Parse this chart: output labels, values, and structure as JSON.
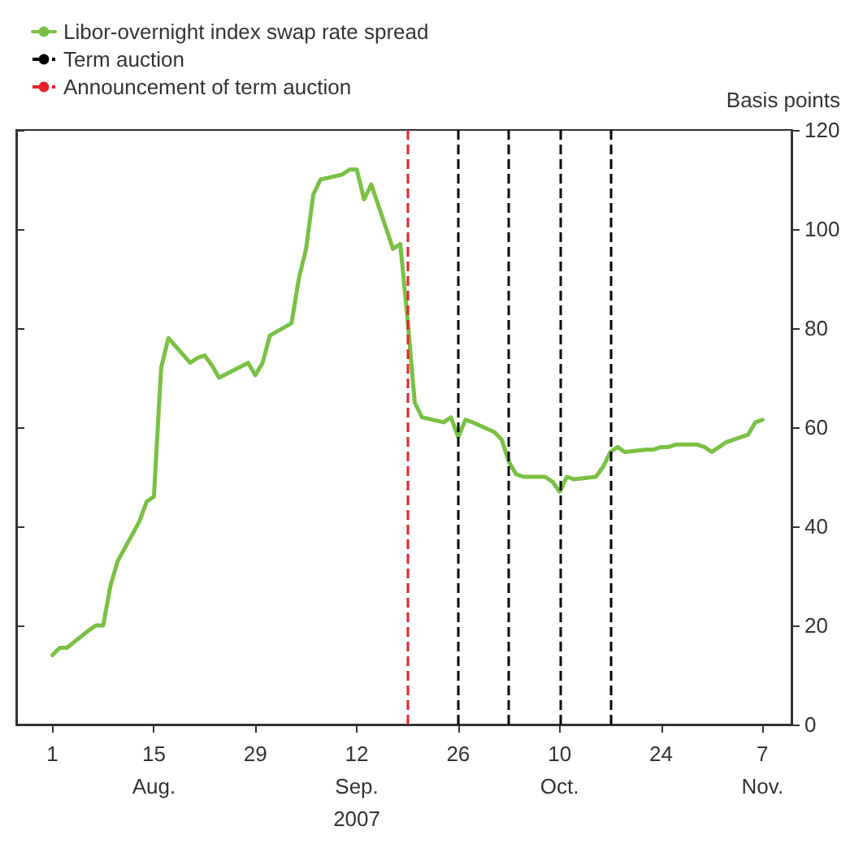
{
  "chart_data": {
    "type": "line",
    "ylabel": "Basis points",
    "legend": "top left",
    "grid": false,
    "marker": "none",
    "line_style": "solid",
    "xlim": [
      "2007-07-27",
      "2007-11-11"
    ],
    "xticks": [
      {
        "value": "2007-08-01",
        "label": "1"
      },
      {
        "value": "2007-08-15",
        "label": "15\nAug."
      },
      {
        "value": "2007-08-29",
        "label": "29"
      },
      {
        "value": "2007-09-12",
        "label": "12\nSep.\n2007"
      },
      {
        "value": "2007-09-26",
        "label": "26"
      },
      {
        "value": "2007-10-10",
        "label": "10\nOct."
      },
      {
        "value": "2007-10-24",
        "label": "24"
      },
      {
        "value": "2007-11-07",
        "label": "7\nNov."
      }
    ],
    "ylim": [
      0,
      120
    ],
    "yticks": [
      0,
      20,
      40,
      60,
      80,
      100,
      120
    ],
    "x": [
      "2007-08-01",
      "2007-08-02",
      "2007-08-03",
      "2007-08-06",
      "2007-08-07",
      "2007-08-08",
      "2007-08-09",
      "2007-08-10",
      "2007-08-13",
      "2007-08-14",
      "2007-08-15",
      "2007-08-16",
      "2007-08-17",
      "2007-08-20",
      "2007-08-21",
      "2007-08-22",
      "2007-08-23",
      "2007-08-24",
      "2007-08-28",
      "2007-08-29",
      "2007-08-30",
      "2007-08-31",
      "2007-09-03",
      "2007-09-04",
      "2007-09-05",
      "2007-09-06",
      "2007-09-07",
      "2007-09-10",
      "2007-09-11",
      "2007-09-12",
      "2007-09-13",
      "2007-09-14",
      "2007-09-17",
      "2007-09-18",
      "2007-09-19",
      "2007-09-20",
      "2007-09-21",
      "2007-09-24",
      "2007-09-25",
      "2007-09-26",
      "2007-09-27",
      "2007-09-28",
      "2007-10-01",
      "2007-10-02",
      "2007-10-03",
      "2007-10-04",
      "2007-10-05",
      "2007-10-08",
      "2007-10-09",
      "2007-10-10",
      "2007-10-11",
      "2007-10-12",
      "2007-10-15",
      "2007-10-16",
      "2007-10-17",
      "2007-10-18",
      "2007-10-19",
      "2007-10-22",
      "2007-10-23",
      "2007-10-24",
      "2007-10-25",
      "2007-10-26",
      "2007-10-29",
      "2007-10-30",
      "2007-10-31",
      "2007-11-01",
      "2007-11-02",
      "2007-11-05",
      "2007-11-06",
      "2007-11-07"
    ],
    "series": [
      {
        "name": "Libor-overnight index swap rate spread",
        "color": "#7ac143",
        "values": [
          14,
          15.5,
          15.5,
          19,
          20,
          20,
          28,
          33,
          41,
          45,
          46,
          72,
          78,
          73,
          74,
          74.5,
          72.5,
          70,
          73,
          70.5,
          73,
          78.5,
          81,
          90,
          96,
          107,
          110,
          111,
          112,
          112,
          106,
          109,
          96,
          97,
          82,
          65,
          62,
          61,
          62,
          58,
          61.5,
          61,
          59,
          57.5,
          53,
          50.5,
          50,
          50,
          49,
          47,
          50,
          49.5,
          50,
          52,
          55,
          56,
          55,
          55.5,
          55.5,
          56,
          56,
          56.5,
          56.5,
          56,
          55,
          56,
          57,
          58.5,
          61,
          61.5
        ]
      }
    ],
    "ref_lines": [
      {
        "axis": "x",
        "value": "2007-09-26",
        "label": "Term auction",
        "color": "#000000",
        "line_style": "dashed"
      },
      {
        "axis": "x",
        "value": "2007-10-03",
        "color": "#000000",
        "line_style": "dashed"
      },
      {
        "axis": "x",
        "value": "2007-10-10",
        "color": "#000000",
        "line_style": "dashed"
      },
      {
        "axis": "x",
        "value": "2007-10-17",
        "color": "#000000",
        "line_style": "dashed"
      },
      {
        "axis": "x",
        "value": "2007-09-19",
        "label": "Announcement of term auction",
        "color": "#e8202a",
        "line_style": "dashed"
      }
    ]
  }
}
